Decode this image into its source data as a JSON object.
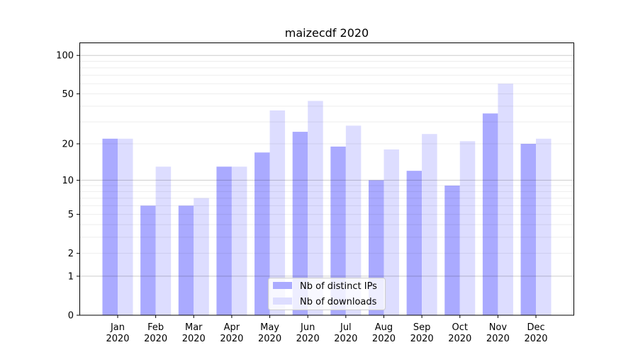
{
  "chart_data": {
    "type": "bar",
    "title": "maizecdf 2020",
    "xlabel": "",
    "ylabel": "",
    "yscale": "log10(y+1)",
    "ylim": [
      0,
      126
    ],
    "yticks": [
      0,
      1,
      2,
      5,
      10,
      20,
      50,
      100
    ],
    "ytick_labels": [
      "0",
      "1",
      "2",
      "5",
      "10",
      "20",
      "50",
      "100"
    ],
    "categories": [
      "Jan\n2020",
      "Feb\n2020",
      "Mar\n2020",
      "Apr\n2020",
      "May\n2020",
      "Jun\n2020",
      "Jul\n2020",
      "Aug\n2020",
      "Sep\n2020",
      "Oct\n2020",
      "Nov\n2020",
      "Dec\n2020"
    ],
    "category_lines": [
      [
        "Jan",
        "2020"
      ],
      [
        "Feb",
        "2020"
      ],
      [
        "Mar",
        "2020"
      ],
      [
        "Apr",
        "2020"
      ],
      [
        "May",
        "2020"
      ],
      [
        "Jun",
        "2020"
      ],
      [
        "Jul",
        "2020"
      ],
      [
        "Aug",
        "2020"
      ],
      [
        "Sep",
        "2020"
      ],
      [
        "Oct",
        "2020"
      ],
      [
        "Nov",
        "2020"
      ],
      [
        "Dec",
        "2020"
      ]
    ],
    "series": [
      {
        "name": "Nb of distinct IPs",
        "color": "#aaaaff",
        "values": [
          22,
          6,
          6,
          13,
          17,
          25,
          19,
          10,
          12,
          9,
          35,
          20
        ]
      },
      {
        "name": "Nb of downloads",
        "color": "#ddddff",
        "values": [
          22,
          13,
          7,
          13,
          37,
          44,
          28,
          18,
          24,
          21,
          60,
          22
        ]
      }
    ],
    "grid": "y major and minor",
    "legend_position": "bottom-center"
  }
}
